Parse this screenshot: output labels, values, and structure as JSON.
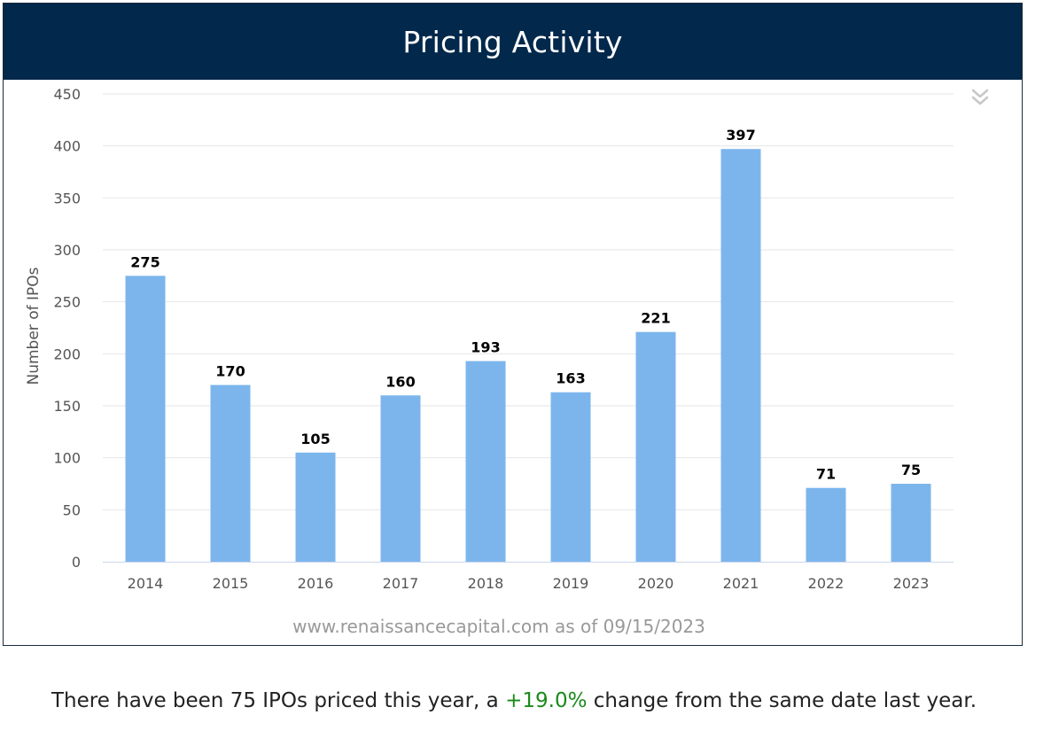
{
  "panel": {
    "title": "Pricing Activity",
    "source_note": "www.renaissancecapital.com as of 09/15/2023"
  },
  "summary": {
    "prefix": "There have been 75 IPOs priced this year, a ",
    "change": "+19.0%",
    "suffix": " change from the same date last year."
  },
  "colors": {
    "header_bg": "#02284b",
    "bar": "#7cb5ec",
    "positive": "#1a8a1a"
  },
  "icons": {
    "collapse": "double-chevron-down-icon"
  },
  "chart_data": {
    "type": "bar",
    "title": "",
    "xlabel": "",
    "ylabel": "Number of IPOs",
    "categories": [
      "2014",
      "2015",
      "2016",
      "2017",
      "2018",
      "2019",
      "2020",
      "2021",
      "2022",
      "2023"
    ],
    "values": [
      275,
      170,
      105,
      160,
      193,
      163,
      221,
      397,
      71,
      75
    ],
    "ylim": [
      0,
      450
    ],
    "yticks": [
      0,
      50,
      100,
      150,
      200,
      250,
      300,
      350,
      400,
      450
    ],
    "grid": true,
    "legend": "none",
    "data_labels": true
  }
}
